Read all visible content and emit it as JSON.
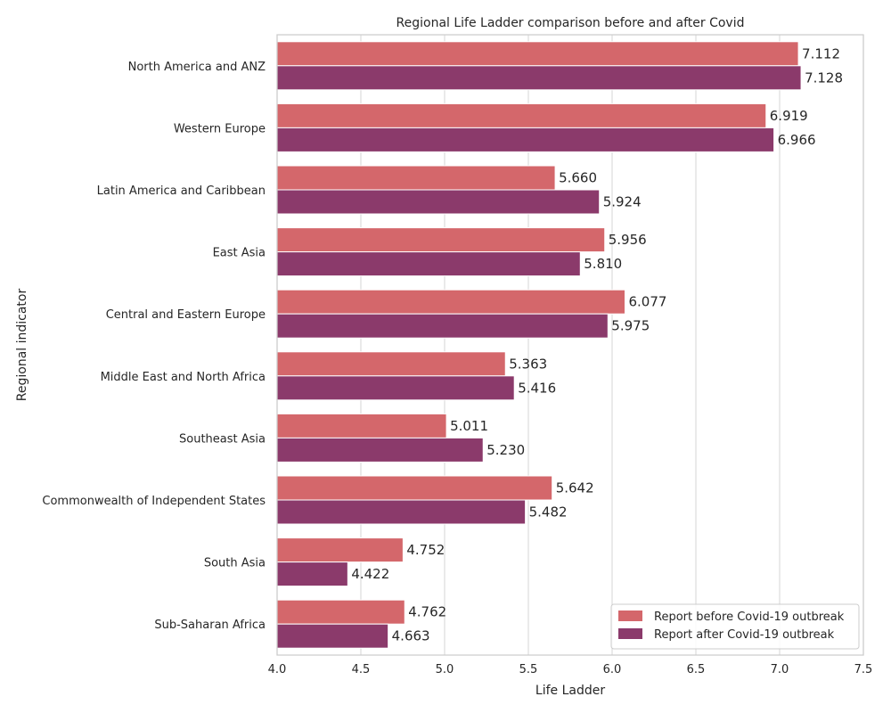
{
  "chart_data": {
    "type": "bar",
    "orientation": "horizontal",
    "title": "Regional Life Ladder comparison before and after Covid",
    "xlabel": "Life Ladder",
    "ylabel": "Regional indicator",
    "xlim": [
      4.0,
      7.5
    ],
    "xticks": [
      "4.0",
      "4.5",
      "5.0",
      "5.5",
      "6.0",
      "6.5",
      "7.0",
      "7.5"
    ],
    "grid": true,
    "legend_position": "bottom-right",
    "categories": [
      "North America and ANZ",
      "Western Europe",
      "Latin America and Caribbean",
      "East Asia",
      "Central and Eastern Europe",
      "Middle East and North Africa",
      "Southeast Asia",
      "Commonwealth of Independent States",
      "South Asia",
      "Sub-Saharan Africa"
    ],
    "series": [
      {
        "name": "Report before Covid-19 outbreak",
        "color": "#d4676b",
        "values": [
          7.112,
          6.919,
          5.66,
          5.956,
          6.077,
          5.363,
          5.011,
          5.642,
          4.752,
          4.762
        ],
        "labels": [
          "7.112",
          "6.919",
          "5.660",
          "5.956",
          "6.077",
          "5.363",
          "5.011",
          "5.642",
          "4.752",
          "4.762"
        ]
      },
      {
        "name": "Report after Covid-19 outbreak",
        "color": "#8b3a6b",
        "values": [
          7.128,
          6.966,
          5.924,
          5.81,
          5.975,
          5.416,
          5.23,
          5.482,
          4.422,
          4.663
        ],
        "labels": [
          "7.128",
          "6.966",
          "5.924",
          "5.810",
          "5.975",
          "5.416",
          "5.230",
          "5.482",
          "4.422",
          "4.663"
        ]
      }
    ]
  }
}
